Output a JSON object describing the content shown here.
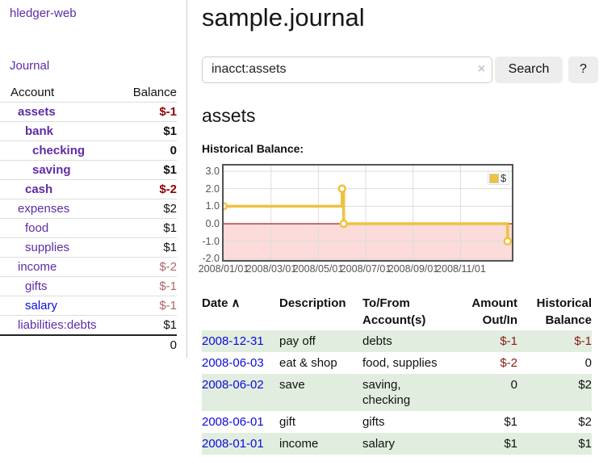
{
  "colors": {
    "link_purple": "#5e2ca5",
    "link_blue": "#0b0bdd",
    "negative_strong": "#940000",
    "negative_soft": "#b0646e",
    "negative_table": "#8c1a17",
    "row_stripe_green": "#e1eedf",
    "chart_line_yellow": "#edc240",
    "chart_negative_pink": "#fcdbdb",
    "chart_zero_line": "#a40000"
  },
  "sidebar": {
    "brand": "hledger-web",
    "journal_link": "Journal",
    "accounts_headers": {
      "account": "Account",
      "balance": "Balance"
    },
    "accounts": [
      {
        "name": "assets",
        "balance": "$-1"
      },
      {
        "name": "bank",
        "balance": "$1"
      },
      {
        "name": "checking",
        "balance": "0"
      },
      {
        "name": "saving",
        "balance": "$1"
      },
      {
        "name": "cash",
        "balance": "$-2"
      },
      {
        "name": "expenses",
        "balance": "$2"
      },
      {
        "name": "food",
        "balance": "$1"
      },
      {
        "name": "supplies",
        "balance": "$1"
      },
      {
        "name": "income",
        "balance": "$-2"
      },
      {
        "name": "gifts",
        "balance": "$-1"
      },
      {
        "name": "salary",
        "balance": "$-1"
      },
      {
        "name": "liabilities:debts",
        "balance": "$1"
      }
    ],
    "total": "0"
  },
  "header": {
    "title": "sample.journal"
  },
  "search": {
    "value": "inacct:assets",
    "clear_icon": "×",
    "button_label": "Search",
    "help_label": "?"
  },
  "account_page": {
    "heading": "assets",
    "chart_label": "Historical Balance:"
  },
  "chart_data": {
    "type": "line",
    "step": true,
    "title": "Historical Balance",
    "series": [
      {
        "name": "$",
        "color": "#edc240",
        "points": [
          [
            "2008-01-01",
            1
          ],
          [
            "2008-06-01",
            2
          ],
          [
            "2008-06-03",
            0
          ],
          [
            "2008-12-31",
            -1
          ]
        ]
      }
    ],
    "x_ticks": [
      "2008/01/01",
      "2008/03/01",
      "2008/05/01",
      "2008/07/01",
      "2008/09/01",
      "2008/11/01"
    ],
    "y_ticks": [
      "3.0",
      "2.0",
      "1.0",
      "0.0",
      "-1.0",
      "-2.0"
    ],
    "ylim": [
      -2.1,
      3.3
    ],
    "xlim": [
      "2008-01-01",
      "2009-01-08"
    ],
    "grid": true,
    "legend_position": "top-right",
    "negative_region_color": "#fcdbdb",
    "zero_line_color": "#a40000"
  },
  "register": {
    "columns": [
      "Date",
      "Description",
      "To/From Account(s)",
      "Amount Out/In",
      "Historical Balance"
    ],
    "sort_icon": "∧",
    "rows": [
      {
        "date": "2008-12-31",
        "description": "pay off",
        "accounts": "debts",
        "amount": "$-1",
        "balance": "$-1"
      },
      {
        "date": "2008-06-03",
        "description": "eat & shop",
        "accounts": "food, supplies",
        "amount": "$-2",
        "balance": "0"
      },
      {
        "date": "2008-06-02",
        "description": "save",
        "accounts": "saving, checking",
        "amount": "0",
        "balance": "$2"
      },
      {
        "date": "2008-06-01",
        "description": "gift",
        "accounts": "gifts",
        "amount": "$1",
        "balance": "$2"
      },
      {
        "date": "2008-01-01",
        "description": "income",
        "accounts": "salary",
        "amount": "$1",
        "balance": "$1"
      }
    ]
  }
}
